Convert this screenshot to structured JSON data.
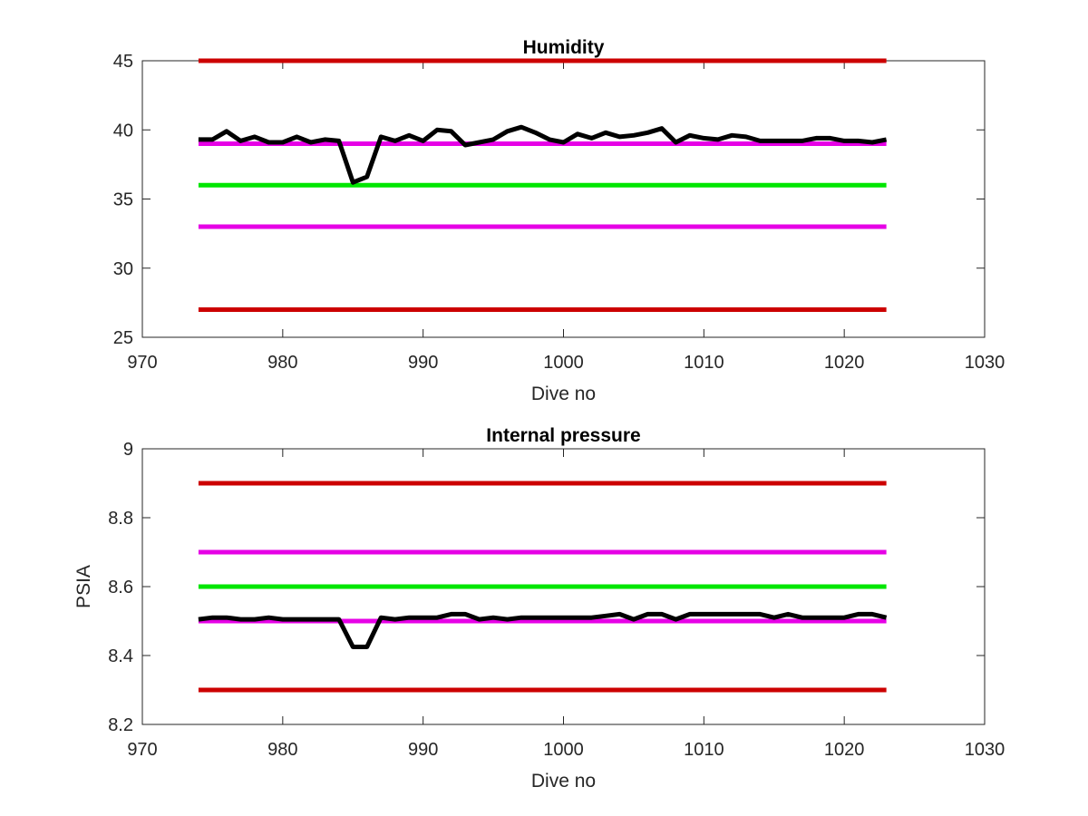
{
  "chart_data": [
    {
      "type": "line",
      "title": "Humidity",
      "xlabel": "Dive no",
      "ylabel": "",
      "xlim": [
        970,
        1030
      ],
      "ylim": [
        25,
        45
      ],
      "xticks": [
        970,
        980,
        990,
        1000,
        1010,
        1020,
        1030
      ],
      "xtick_labels": [
        "970",
        "980",
        "990",
        "1000",
        "1010",
        "1020",
        "1030"
      ],
      "yticks": [
        25,
        30,
        35,
        40,
        45
      ],
      "ytick_labels": [
        "25",
        "30",
        "35",
        "40",
        "45"
      ],
      "grid": false,
      "thresholds": [
        {
          "value": 45,
          "color": "#cc0000",
          "x": [
            974,
            1023
          ]
        },
        {
          "value": 39,
          "color": "#e600e6",
          "x": [
            974,
            1023
          ]
        },
        {
          "value": 36,
          "color": "#00e600",
          "x": [
            974,
            1023
          ]
        },
        {
          "value": 33,
          "color": "#e600e6",
          "x": [
            974,
            1023
          ]
        },
        {
          "value": 27,
          "color": "#cc0000",
          "x": [
            974,
            1023
          ]
        }
      ],
      "series": [
        {
          "color": "#000000",
          "x": [
            974,
            975,
            976,
            977,
            978,
            979,
            980,
            981,
            982,
            983,
            984,
            985,
            986,
            987,
            988,
            989,
            990,
            991,
            992,
            993,
            994,
            995,
            996,
            997,
            998,
            999,
            1000,
            1001,
            1002,
            1003,
            1004,
            1005,
            1006,
            1007,
            1008,
            1009,
            1010,
            1011,
            1012,
            1013,
            1014,
            1015,
            1016,
            1017,
            1018,
            1019,
            1020,
            1021,
            1022,
            1023
          ],
          "y": [
            39.3,
            39.3,
            39.9,
            39.2,
            39.5,
            39.1,
            39.1,
            39.5,
            39.1,
            39.3,
            39.2,
            36.2,
            36.6,
            39.5,
            39.2,
            39.6,
            39.2,
            40.0,
            39.9,
            38.9,
            39.1,
            39.3,
            39.9,
            40.2,
            39.8,
            39.3,
            39.1,
            39.7,
            39.4,
            39.8,
            39.5,
            39.6,
            39.8,
            40.1,
            39.1,
            39.6,
            39.4,
            39.3,
            39.6,
            39.5,
            39.2,
            39.2,
            39.2,
            39.2,
            39.4,
            39.4,
            39.2,
            39.2,
            39.1,
            39.3
          ]
        }
      ]
    },
    {
      "type": "line",
      "title": "Internal pressure",
      "xlabel": "Dive no",
      "ylabel": "PSIA",
      "xlim": [
        970,
        1030
      ],
      "ylim": [
        8.2,
        9
      ],
      "xticks": [
        970,
        980,
        990,
        1000,
        1010,
        1020,
        1030
      ],
      "xtick_labels": [
        "970",
        "980",
        "990",
        "1000",
        "1010",
        "1020",
        "1030"
      ],
      "yticks": [
        8.2,
        8.4,
        8.6,
        8.8,
        9
      ],
      "ytick_labels": [
        "8.2",
        "8.4",
        "8.6",
        "8.8",
        "9"
      ],
      "grid": false,
      "thresholds": [
        {
          "value": 8.9,
          "color": "#cc0000",
          "x": [
            974,
            1023
          ]
        },
        {
          "value": 8.7,
          "color": "#e600e6",
          "x": [
            974,
            1023
          ]
        },
        {
          "value": 8.6,
          "color": "#00e600",
          "x": [
            974,
            1023
          ]
        },
        {
          "value": 8.5,
          "color": "#e600e6",
          "x": [
            974,
            1023
          ]
        },
        {
          "value": 8.3,
          "color": "#cc0000",
          "x": [
            974,
            1023
          ]
        }
      ],
      "series": [
        {
          "color": "#000000",
          "x": [
            974,
            975,
            976,
            977,
            978,
            979,
            980,
            981,
            982,
            983,
            984,
            985,
            986,
            987,
            988,
            989,
            990,
            991,
            992,
            993,
            994,
            995,
            996,
            997,
            998,
            999,
            1000,
            1001,
            1002,
            1003,
            1004,
            1005,
            1006,
            1007,
            1008,
            1009,
            1010,
            1011,
            1012,
            1013,
            1014,
            1015,
            1016,
            1017,
            1018,
            1019,
            1020,
            1021,
            1022,
            1023
          ],
          "y": [
            8.505,
            8.51,
            8.51,
            8.505,
            8.505,
            8.51,
            8.505,
            8.505,
            8.505,
            8.505,
            8.505,
            8.425,
            8.425,
            8.51,
            8.505,
            8.51,
            8.51,
            8.51,
            8.52,
            8.52,
            8.505,
            8.51,
            8.505,
            8.51,
            8.51,
            8.51,
            8.51,
            8.51,
            8.51,
            8.515,
            8.52,
            8.505,
            8.52,
            8.52,
            8.505,
            8.52,
            8.52,
            8.52,
            8.52,
            8.52,
            8.52,
            8.51,
            8.52,
            8.51,
            8.51,
            8.51,
            8.51,
            8.52,
            8.52,
            8.51
          ]
        }
      ]
    }
  ]
}
